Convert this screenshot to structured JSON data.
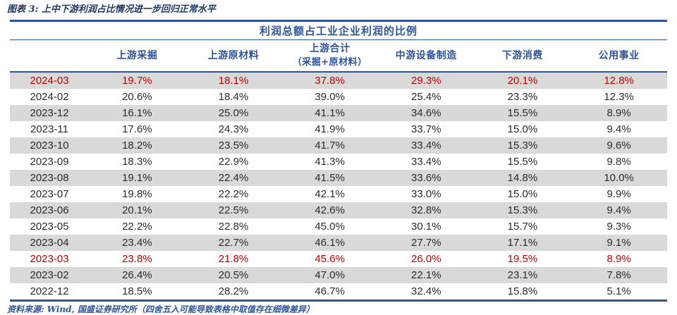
{
  "exhibit": {
    "title": "图表 3: 上中下游利润占比情况进一步回归正常水平",
    "source_note": "资料来源: Wind, 国盛证券研究所（四舍五入可能导致表格中取值存在细微差异）"
  },
  "colors": {
    "title_navy": "#1f3864",
    "table_blue": "#2f5496",
    "highlight_red": "#c00000",
    "stripe_gray": "#d9d9d9",
    "data_text": "#2b2b2b"
  },
  "chart_data": {
    "type": "table",
    "title": "利润总额占工业企业利润的比例",
    "unit": "%",
    "columns": [
      {
        "key": "period",
        "label": "",
        "sub": ""
      },
      {
        "key": "upstream-mining",
        "label": "上游采掘",
        "sub": ""
      },
      {
        "key": "upstream-materials",
        "label": "上游原材料",
        "sub": ""
      },
      {
        "key": "upstream-total",
        "label": "上游合计",
        "sub": "（采掘+原材料）"
      },
      {
        "key": "midstream-equipment",
        "label": "中游设备制造",
        "sub": ""
      },
      {
        "key": "downstream-consumption",
        "label": "下游消费",
        "sub": ""
      },
      {
        "key": "utilities",
        "label": "公用事业",
        "sub": ""
      }
    ],
    "rows": [
      {
        "period": "2024-03",
        "values": [
          19.7,
          18.1,
          37.8,
          29.3,
          20.1,
          12.8
        ],
        "highlight": true
      },
      {
        "period": "2024-02",
        "values": [
          20.6,
          18.4,
          39.0,
          25.4,
          23.3,
          12.3
        ],
        "highlight": false
      },
      {
        "period": "2023-12",
        "values": [
          16.1,
          25.0,
          41.1,
          34.6,
          15.5,
          8.9
        ],
        "highlight": false
      },
      {
        "period": "2023-11",
        "values": [
          17.6,
          24.3,
          41.9,
          33.7,
          15.0,
          9.4
        ],
        "highlight": false
      },
      {
        "period": "2023-10",
        "values": [
          18.2,
          23.5,
          41.7,
          33.4,
          15.3,
          9.6
        ],
        "highlight": false
      },
      {
        "period": "2023-09",
        "values": [
          18.3,
          22.9,
          41.3,
          33.4,
          15.5,
          9.8
        ],
        "highlight": false
      },
      {
        "period": "2023-08",
        "values": [
          19.1,
          22.4,
          41.5,
          33.6,
          14.8,
          10.0
        ],
        "highlight": false
      },
      {
        "period": "2023-07",
        "values": [
          19.8,
          22.2,
          42.1,
          33.0,
          15.0,
          9.9
        ],
        "highlight": false
      },
      {
        "period": "2023-06",
        "values": [
          20.1,
          22.5,
          42.6,
          32.8,
          15.3,
          9.4
        ],
        "highlight": false
      },
      {
        "period": "2023-05",
        "values": [
          22.2,
          22.8,
          45.0,
          30.1,
          15.7,
          9.3
        ],
        "highlight": false
      },
      {
        "period": "2023-04",
        "values": [
          23.4,
          22.7,
          46.1,
          27.7,
          17.1,
          9.1
        ],
        "highlight": false
      },
      {
        "period": "2023-03",
        "values": [
          23.8,
          21.8,
          45.6,
          26.0,
          19.5,
          8.9
        ],
        "highlight": true
      },
      {
        "period": "2023-02",
        "values": [
          26.4,
          20.5,
          47.0,
          22.1,
          23.1,
          7.8
        ],
        "highlight": false
      },
      {
        "period": "2022-12",
        "values": [
          18.5,
          28.2,
          46.7,
          32.4,
          15.8,
          5.1
        ],
        "highlight": false
      }
    ]
  }
}
